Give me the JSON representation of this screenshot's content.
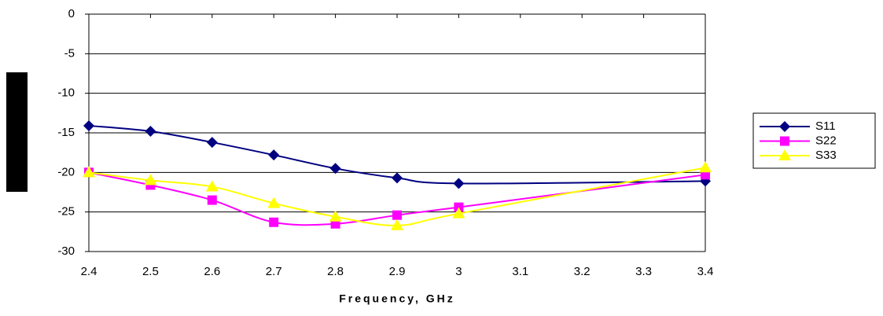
{
  "chart_data": {
    "type": "line",
    "x_label": "Frequency, GHz",
    "x": [
      2.4,
      2.5,
      2.6,
      2.7,
      2.8,
      2.9,
      3,
      3.4
    ],
    "series": [
      {
        "name": "S11",
        "color": "#000080",
        "marker": "diamond",
        "values": [
          -14.1,
          -14.8,
          -16.2,
          -17.8,
          -19.5,
          -20.7,
          -21.4,
          -21.1
        ]
      },
      {
        "name": "S22",
        "color": "#ff00ff",
        "marker": "square",
        "values": [
          -20.0,
          -21.6,
          -23.5,
          -26.3,
          -26.5,
          -25.4,
          -24.4,
          -20.3
        ]
      },
      {
        "name": "S33",
        "color": "#ffff00",
        "marker": "triangle",
        "values": [
          -20.0,
          -21.0,
          -21.8,
          -23.9,
          -25.6,
          -26.7,
          -25.2,
          -19.4
        ]
      }
    ],
    "xlim": [
      2.4,
      3.4
    ],
    "xticks": [
      2.4,
      2.5,
      2.6,
      2.7,
      2.8,
      2.9,
      3,
      3.1,
      3.2,
      3.3,
      3.4
    ],
    "ylim": [
      -30,
      0
    ],
    "yticks": [
      0,
      -5,
      -10,
      -15,
      -20,
      -25,
      -30
    ],
    "grid": true,
    "legend": "right"
  }
}
